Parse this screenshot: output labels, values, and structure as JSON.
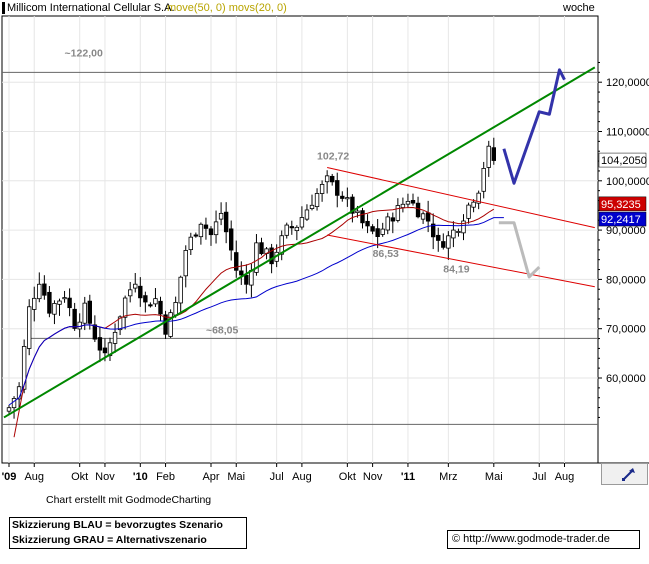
{
  "header": {
    "title": "Millicom International Cellular S.A.",
    "indicators": "move(50, 0) movs(20, 0)",
    "period": "woche"
  },
  "footer": {
    "credit": "Chart erstellt mit GodmodeCharting",
    "legend_blue": "Skizzierung BLAU = bevorzugtes Szenario",
    "legend_gray": "Skizzierung GRAU = Alternativszenario",
    "copyright_symbol": "©",
    "url": "http://www.godmode-trader.de"
  },
  "colors": {
    "candle": "#000000",
    "ma_blue": "#0000cc",
    "ma_red": "#aa0000",
    "trend_green": "#008800",
    "channel_red": "#dd0000",
    "scenario_blue": "#3333aa",
    "scenario_gray": "#bbbbbb",
    "price_tag_bg": "#000000",
    "red_tag_bg": "#cc0000",
    "blue_tag_bg": "#0000cc"
  },
  "chart_data": {
    "type": "candlestick",
    "y_axis": {
      "ticks": [
        60000,
        70000,
        80000,
        90000,
        100000,
        110000,
        120000
      ],
      "tick_labels": [
        "60,0000",
        "70,0000",
        "80,0000",
        "90,0000",
        "100,0000",
        "110,0000",
        "120,0000"
      ],
      "range": [
        50000,
        125000
      ]
    },
    "x_axis": {
      "labels": [
        "'09",
        "Aug",
        "Okt",
        "Nov",
        "'10",
        "Feb",
        "Apr",
        "Mai",
        "Jul",
        "Aug",
        "Okt",
        "Nov",
        "'11",
        "Mrz",
        "Mai",
        "Jul",
        "Aug"
      ],
      "label_weeks": [
        0,
        5,
        14,
        19,
        26,
        31,
        40,
        45,
        53,
        58,
        67,
        72,
        79,
        87,
        96,
        105,
        110
      ]
    },
    "price_tags": [
      {
        "label": "104,2050",
        "value": 104205,
        "style": "last"
      },
      {
        "label": "95,3235",
        "value": 95323.5,
        "style": "red"
      },
      {
        "label": "92,2417",
        "value": 92241.7,
        "style": "blue"
      }
    ],
    "annotations": [
      {
        "label": "~122,00",
        "value": 122000
      },
      {
        "label": "102,72",
        "value": 102720
      },
      {
        "label": "86,53",
        "value": 86530
      },
      {
        "label": "84,19",
        "value": 84190
      },
      {
        "label": "~68,05",
        "value": 68050
      }
    ],
    "horizontal_levels": [
      122000,
      68050,
      50600
    ],
    "trend_lines": [
      {
        "name": "uptrend",
        "color": "trend_green",
        "from": [
          -1,
          52000
        ],
        "to": [
          116,
          123000
        ]
      },
      {
        "name": "channel-upper",
        "color": "channel_red",
        "from": [
          63,
          102700
        ],
        "to": [
          116,
          90500
        ]
      },
      {
        "name": "channel-lower",
        "color": "channel_red",
        "from": [
          63,
          89000
        ],
        "to": [
          116,
          78500
        ]
      }
    ],
    "scenarios": [
      {
        "name": "blue",
        "color": "scenario_blue",
        "points": [
          [
            98,
            106500
          ],
          [
            100,
            99500
          ],
          [
            105,
            114000
          ],
          [
            107,
            113500
          ],
          [
            109,
            122500
          ],
          [
            110,
            120500
          ]
        ]
      },
      {
        "name": "gray",
        "color": "scenario_gray",
        "points": [
          [
            97,
            91500
          ],
          [
            100,
            91500
          ],
          [
            103,
            80500
          ],
          [
            105,
            82500
          ]
        ]
      }
    ],
    "ohlc": []
  }
}
